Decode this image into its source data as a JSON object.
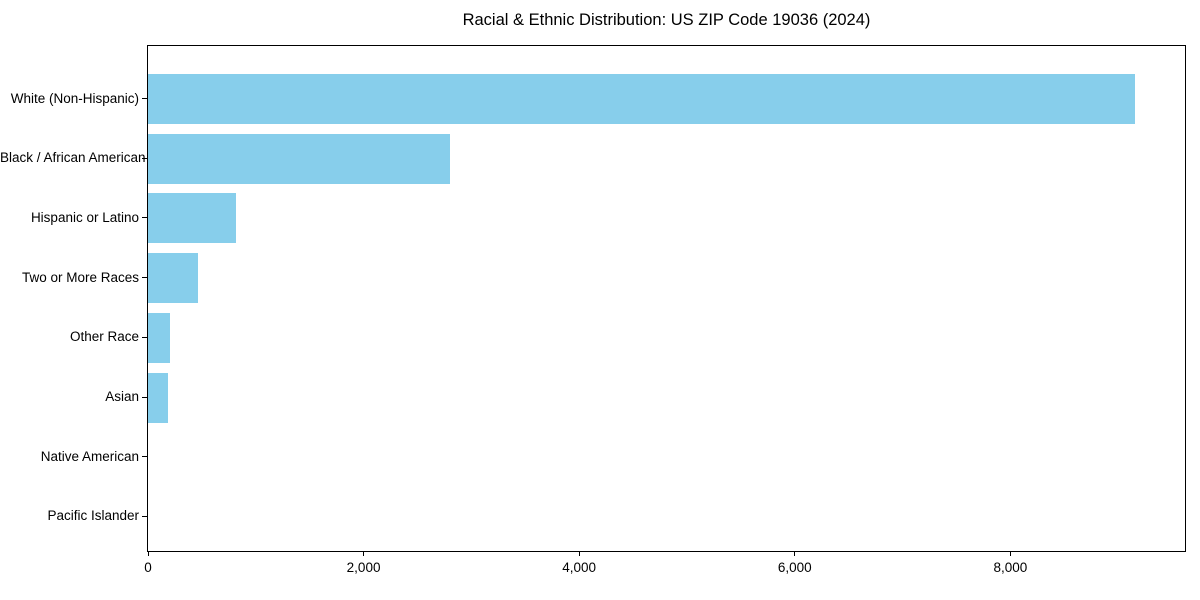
{
  "chart_data": {
    "type": "bar",
    "orientation": "horizontal",
    "title": "Racial & Ethnic Distribution: US ZIP Code 19036 (2024)",
    "xlabel": "",
    "ylabel": "",
    "categories": [
      "White (Non-Hispanic)",
      "Black / African American",
      "Hispanic or Latino",
      "Two or More Races",
      "Other Race",
      "Asian",
      "Native American",
      "Pacific Islander"
    ],
    "values": [
      9160,
      2800,
      815,
      460,
      205,
      190,
      0,
      0
    ],
    "xlim": [
      0,
      9620
    ],
    "xticks": [
      0,
      2000,
      4000,
      6000,
      8000
    ],
    "xtick_labels": [
      "0",
      "2,000",
      "4,000",
      "6,000",
      "8,000"
    ],
    "bar_color": "#87CEEB",
    "grid": false,
    "legend": null
  }
}
